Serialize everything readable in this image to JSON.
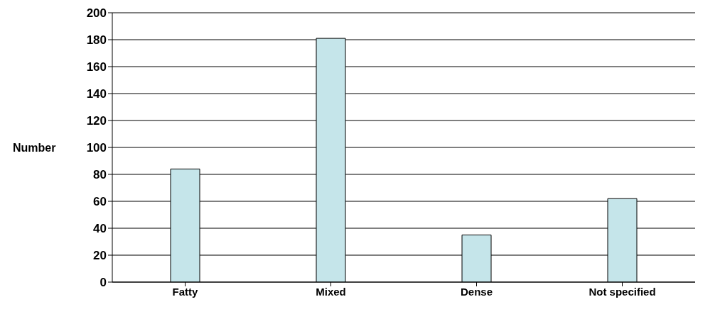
{
  "chart_data": {
    "type": "bar",
    "ylabel": "Number",
    "categories": [
      "Fatty",
      "Mixed",
      "Dense",
      "Not specified"
    ],
    "values": [
      84,
      181,
      35,
      62
    ],
    "color": "#c5e5ea",
    "ylim": [
      0,
      200
    ],
    "yticks": [
      0,
      20,
      40,
      60,
      80,
      100,
      120,
      140,
      160,
      180,
      200
    ],
    "grid": "y"
  }
}
